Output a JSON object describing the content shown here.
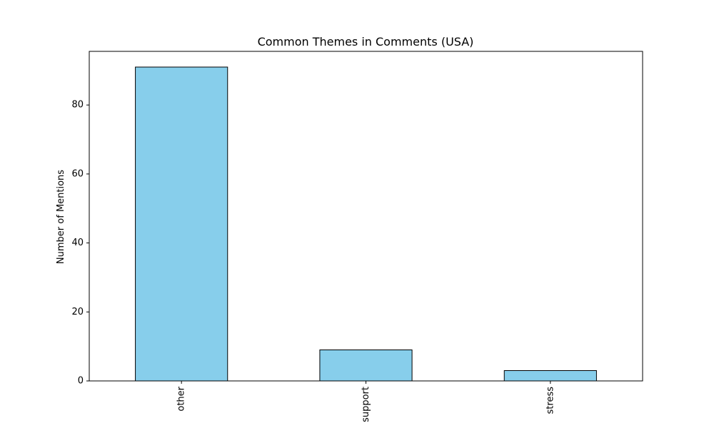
{
  "chart_data": {
    "type": "bar",
    "title": "Common Themes in Comments (USA)",
    "xlabel": "",
    "ylabel": "Number of Mentions",
    "categories": [
      "other",
      "support",
      "stress"
    ],
    "values": [
      91,
      9,
      3
    ],
    "ylim": [
      0,
      95.55
    ],
    "yticks": [
      0,
      20,
      40,
      60,
      80
    ],
    "tick_rotation_x": 90,
    "grid": false,
    "legend": "none",
    "colors": {
      "bar_fill": "#87ceeb",
      "bar_edge": "#000000",
      "axis": "#000000",
      "background": "#ffffff"
    }
  }
}
